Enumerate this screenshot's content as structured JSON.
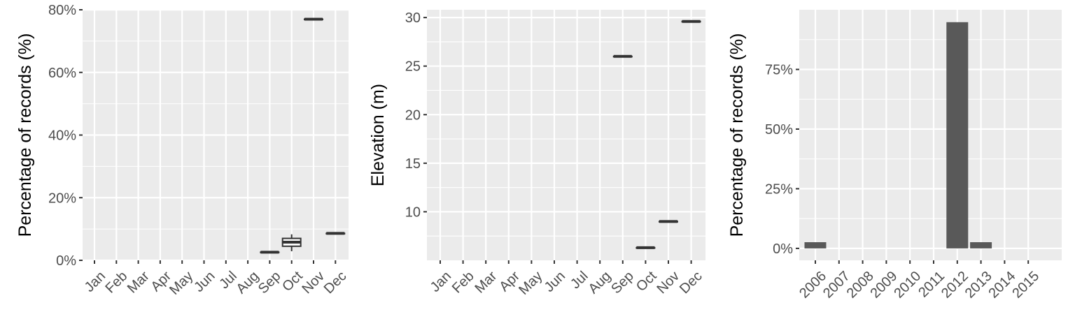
{
  "chart_data": [
    {
      "type": "boxplot",
      "xlabel": "",
      "ylabel": "Percentage of records (%)",
      "ylim": [
        0,
        80
      ],
      "y_ticks": [
        0,
        20,
        40,
        60,
        80
      ],
      "y_tick_labels": [
        "0%",
        "20%",
        "40%",
        "60%",
        "80%"
      ],
      "categories": [
        "Jan",
        "Feb",
        "Mar",
        "Apr",
        "May",
        "Jun",
        "Jul",
        "Aug",
        "Sep",
        "Oct",
        "Nov",
        "Dec"
      ],
      "boxes": [
        {
          "category": "Sep",
          "min": 2.6,
          "q1": 2.6,
          "median": 2.6,
          "q3": 2.6,
          "max": 2.6
        },
        {
          "category": "Oct",
          "min": 2.9,
          "q1": 4.5,
          "median": 5.8,
          "q3": 7.0,
          "max": 8.3
        },
        {
          "category": "Nov",
          "min": 77.0,
          "q1": 77.0,
          "median": 77.0,
          "q3": 77.0,
          "max": 77.0
        },
        {
          "category": "Dec",
          "min": 8.6,
          "q1": 8.6,
          "median": 8.6,
          "q3": 8.6,
          "max": 8.6
        }
      ],
      "grid": true,
      "colors": {
        "panel": "#ebebeb",
        "box_line": "#333333",
        "box_fill": "#ffffff"
      }
    },
    {
      "type": "boxplot",
      "xlabel": "",
      "ylabel": "Elevation (m)",
      "ylim": [
        5,
        30.8
      ],
      "y_ticks": [
        10,
        15,
        20,
        25,
        30
      ],
      "y_tick_labels": [
        "10",
        "15",
        "20",
        "25",
        "30"
      ],
      "categories": [
        "Jan",
        "Feb",
        "Mar",
        "Apr",
        "May",
        "Jun",
        "Jul",
        "Aug",
        "Sep",
        "Oct",
        "Nov",
        "Dec"
      ],
      "boxes": [
        {
          "category": "Sep",
          "min": 26.0,
          "q1": 26.0,
          "median": 26.0,
          "q3": 26.0,
          "max": 26.0
        },
        {
          "category": "Oct",
          "min": 6.3,
          "q1": 6.3,
          "median": 6.3,
          "q3": 6.3,
          "max": 6.3
        },
        {
          "category": "Nov",
          "min": 9.0,
          "q1": 9.0,
          "median": 9.0,
          "q3": 9.0,
          "max": 9.0
        },
        {
          "category": "Dec",
          "min": 29.6,
          "q1": 29.6,
          "median": 29.6,
          "q3": 29.6,
          "max": 29.6
        }
      ],
      "grid": true,
      "colors": {
        "panel": "#ebebeb",
        "box_line": "#333333",
        "box_fill": "#ffffff"
      }
    },
    {
      "type": "bar",
      "xlabel": "",
      "ylabel": "Percentage of records (%)",
      "ylim": [
        -5,
        100
      ],
      "y_ticks": [
        0,
        25,
        50,
        75
      ],
      "y_tick_labels": [
        "0%",
        "25%",
        "50%",
        "75%"
      ],
      "categories": [
        "2006",
        "2007",
        "2008",
        "2009",
        "2010",
        "2011",
        "2012",
        "2013",
        "2014",
        "2015"
      ],
      "values": [
        2.6,
        0,
        0,
        0,
        0,
        0,
        94.8,
        2.6,
        0,
        0
      ],
      "grid": true,
      "colors": {
        "panel": "#ebebeb",
        "bar": "#595959"
      }
    }
  ]
}
